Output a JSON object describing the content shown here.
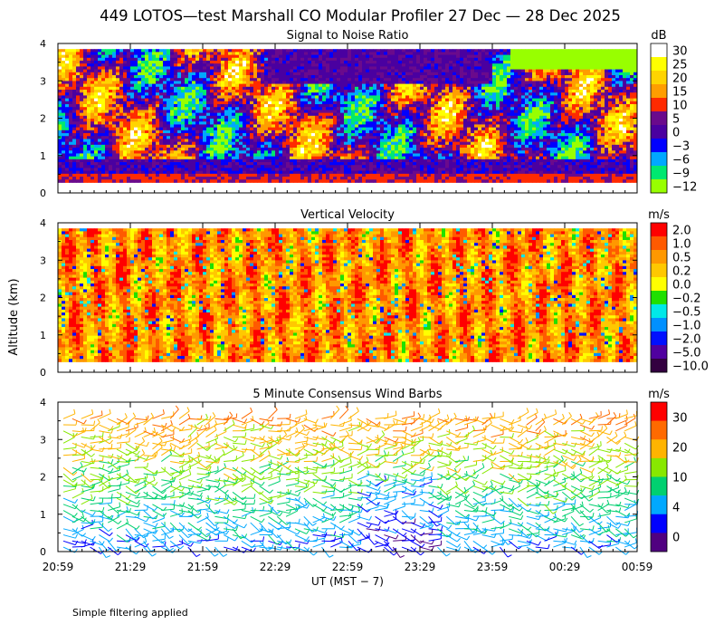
{
  "figure": {
    "title": "449 LOTOS—test Marshall CO Modular Profiler 27 Dec — 28 Dec 2025",
    "y_axis_label": "Altitude (km)",
    "x_axis_label": "UT  (MST − 7)",
    "footnote": "Simple filtering applied"
  },
  "chart_data": [
    {
      "type": "heatmap",
      "title": "Signal to Noise Ratio",
      "x": [
        "20:59",
        "21:29",
        "21:59",
        "22:29",
        "22:59",
        "23:29",
        "23:59",
        "00:29",
        "00:59"
      ],
      "y_ticks": [
        0,
        1,
        2,
        3,
        4
      ],
      "ylim": [
        0,
        4
      ],
      "colorbar": {
        "unit": "dB",
        "labels": [
          "30",
          "25",
          "20",
          "15",
          "10",
          "5",
          "0",
          "−3",
          "−6",
          "−9",
          "−12"
        ],
        "colors": [
          "#ffffff",
          "#ffff00",
          "#ffd400",
          "#ff9d00",
          "#ff2a00",
          "#6a0a8c",
          "#4a00a0",
          "#0000ff",
          "#00a8ff",
          "#00e870",
          "#98ff00"
        ]
      },
      "grid": false
    },
    {
      "type": "heatmap",
      "title": "Vertical Velocity",
      "x": [
        "20:59",
        "21:29",
        "21:59",
        "22:29",
        "22:59",
        "23:29",
        "23:59",
        "00:29",
        "00:59"
      ],
      "y_ticks": [
        0,
        1,
        2,
        3,
        4
      ],
      "ylim": [
        0,
        4
      ],
      "colorbar": {
        "unit": "m/s",
        "labels": [
          "2.0",
          "1.0",
          "0.5",
          "0.2",
          "0.0",
          "−0.2",
          "−0.5",
          "−1.0",
          "−2.0",
          "−5.0",
          "−10.0"
        ],
        "colors": [
          "#ff0000",
          "#ff5a00",
          "#ff9800",
          "#ffc800",
          "#ffff00",
          "#20e000",
          "#00e8e8",
          "#0090ff",
          "#0010ff",
          "#5000a0",
          "#330040"
        ]
      },
      "grid": false
    },
    {
      "type": "scatter",
      "title": "5 Minute Consensus Wind Barbs",
      "x": [
        "20:59",
        "21:29",
        "21:59",
        "22:29",
        "22:59",
        "23:29",
        "23:59",
        "00:29",
        "00:59"
      ],
      "y_ticks": [
        0,
        1,
        2,
        3,
        4
      ],
      "ylim": [
        0,
        4
      ],
      "colorbar": {
        "unit": "m/s",
        "labels": [
          "30",
          "20",
          "10",
          "4",
          "0"
        ],
        "colors": [
          "#ff0000",
          "#ff6a00",
          "#ffb400",
          "#88e800",
          "#00d070",
          "#00a8ff",
          "#0000ff",
          "#500080"
        ]
      },
      "grid": false
    }
  ]
}
